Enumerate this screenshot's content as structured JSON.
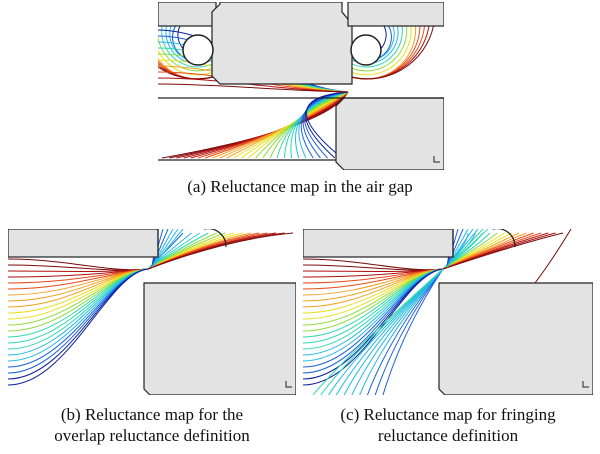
{
  "figure": {
    "panels": [
      {
        "id": "a",
        "caption": "(a) Reluctance map in the air gap"
      },
      {
        "id": "b",
        "caption_line1": "(b) Reluctance map for the",
        "caption_line2": "overlap reluctance definition"
      },
      {
        "id": "c",
        "caption_line1": "(c) Reluctance map for fringing",
        "caption_line2": "reluctance definition"
      }
    ],
    "colors": {
      "iron": "#e3e3e3",
      "outline": "#222222",
      "field_colormap": [
        "#0a1f9c",
        "#1a60e0",
        "#22b8e8",
        "#2bd8b0",
        "#8fdc3a",
        "#e8e020",
        "#f4a020",
        "#e84a18",
        "#b01010",
        "#7a0a0a"
      ]
    }
  }
}
